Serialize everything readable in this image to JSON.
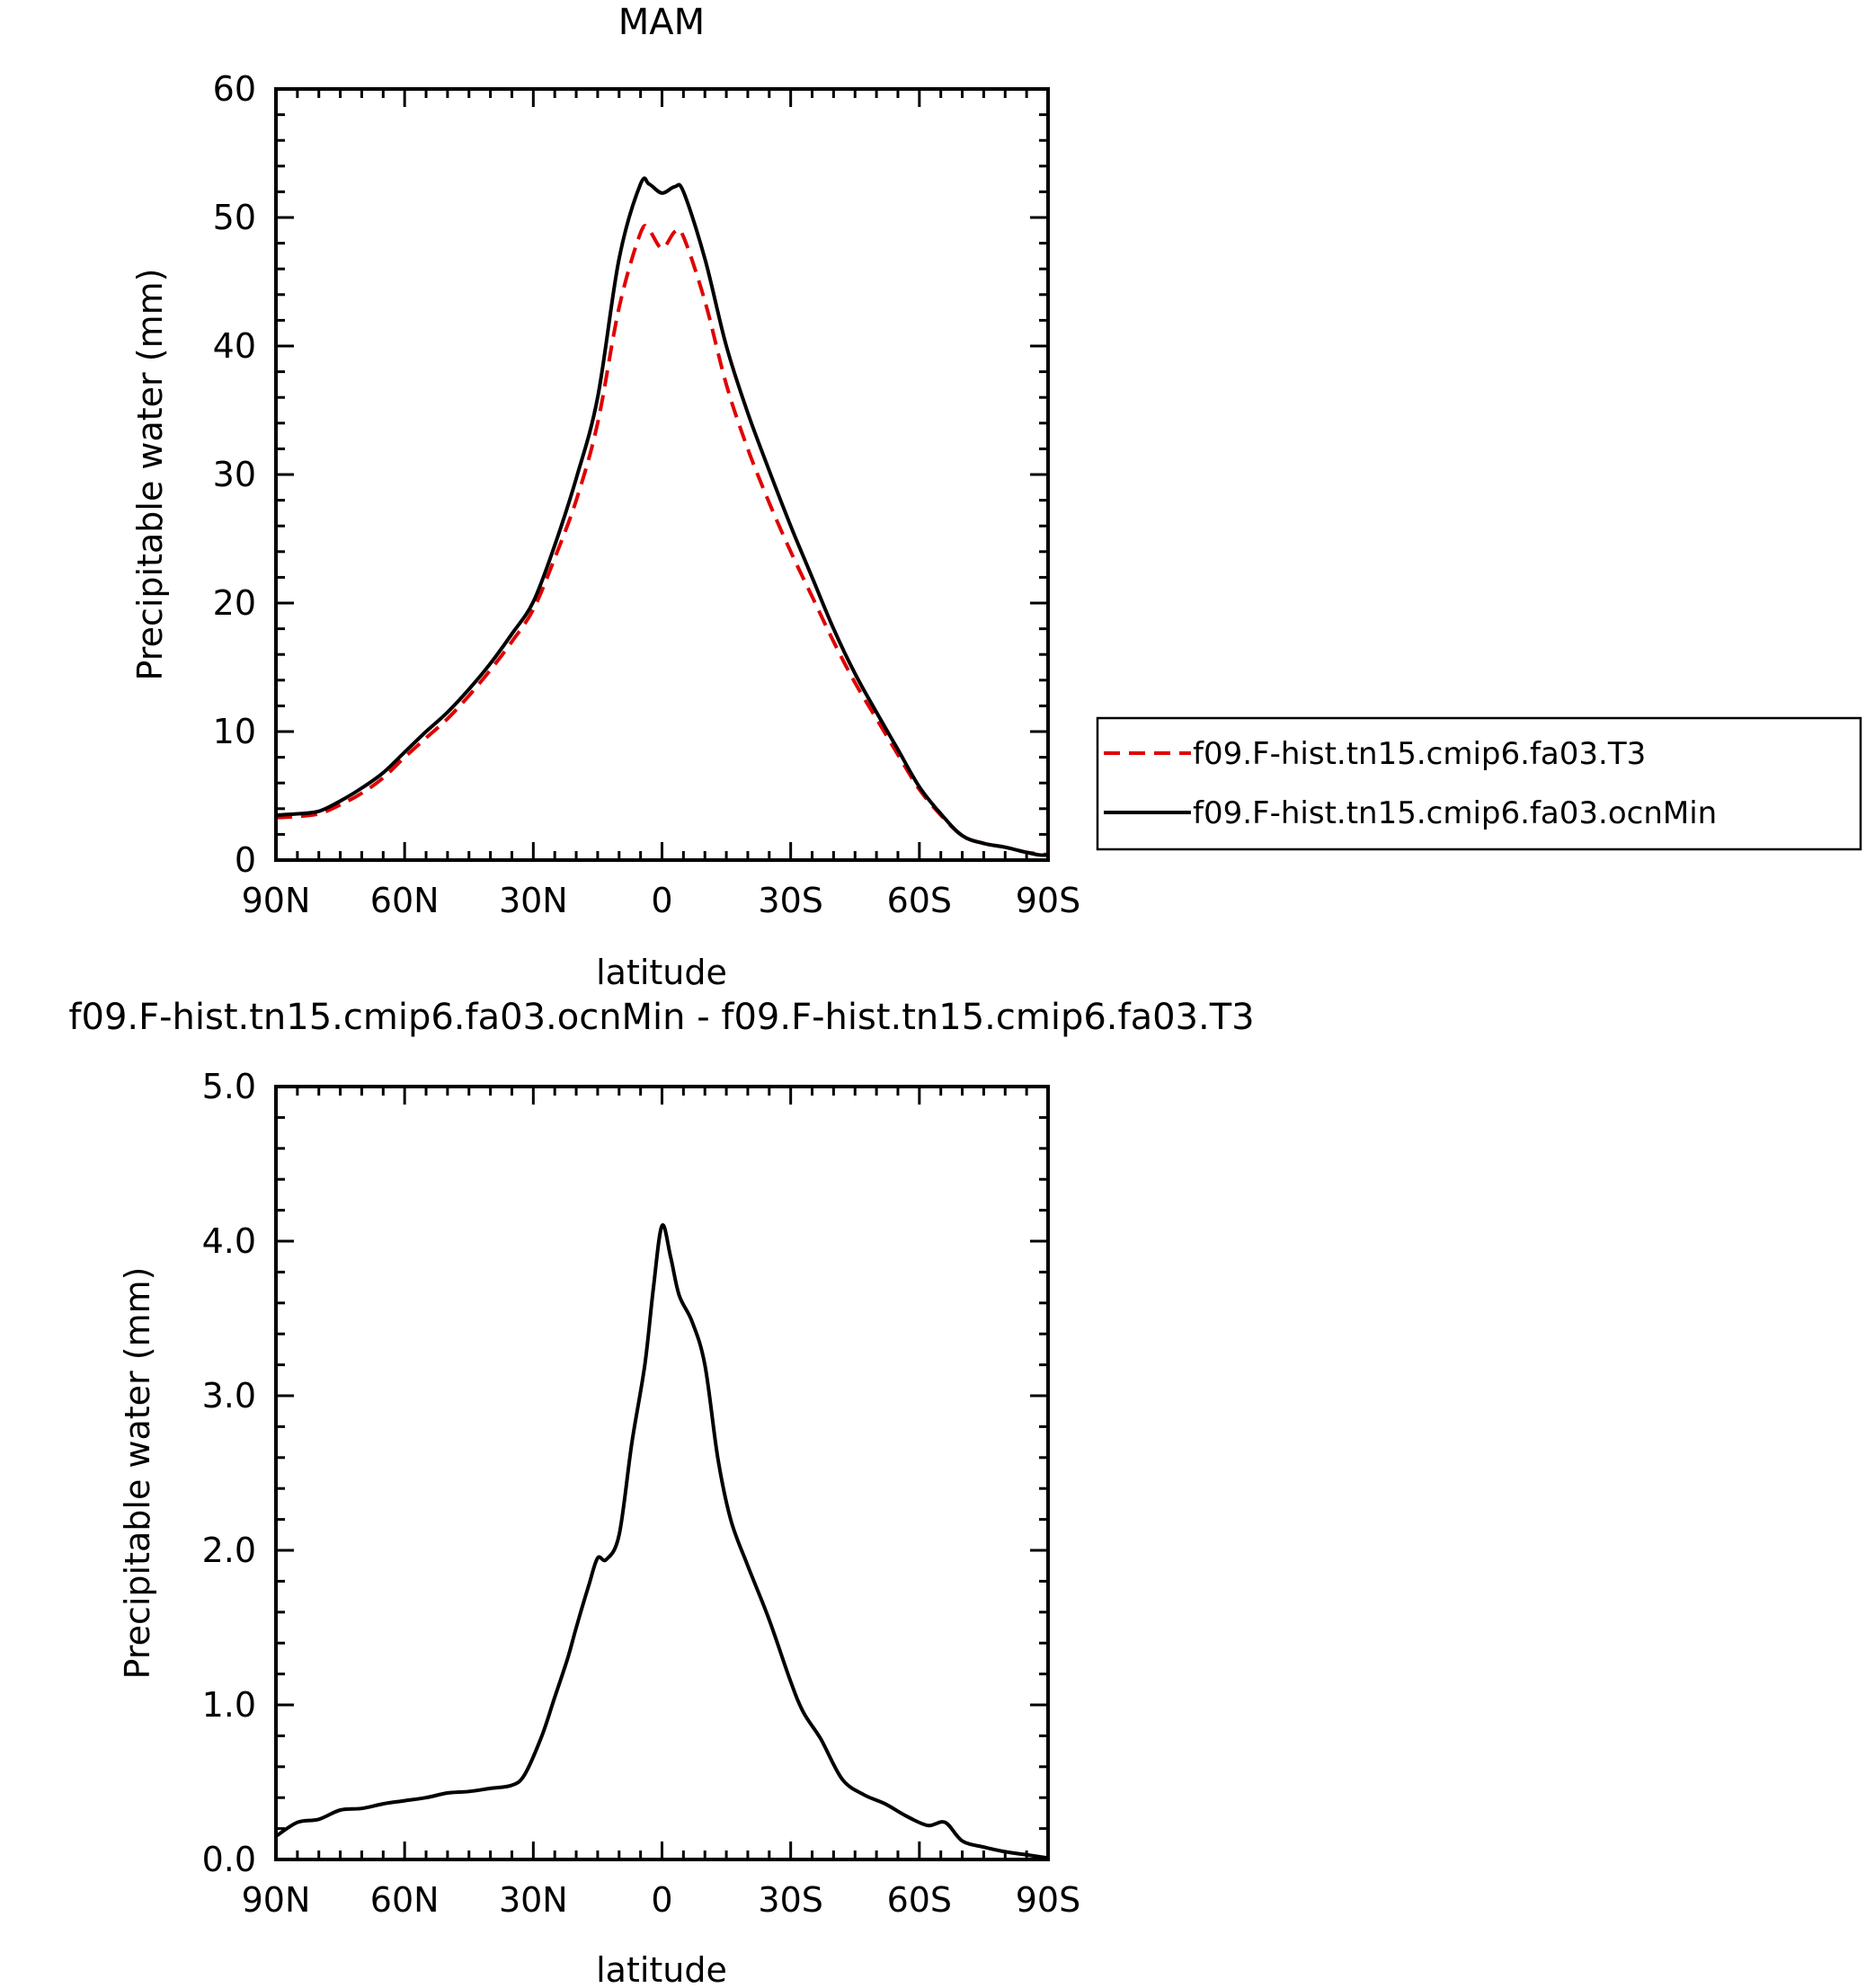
{
  "chart_data": [
    {
      "type": "line",
      "title": "MAM",
      "xlabel": "latitude",
      "ylabel": "Precipitable water (mm)",
      "xlim": [
        90,
        -90
      ],
      "ylim": [
        0,
        60
      ],
      "x_tick_values": [
        90,
        60,
        30,
        0,
        -30,
        -60,
        -90
      ],
      "x_tick_labels": [
        "90N",
        "60N",
        "30N",
        "0",
        "30S",
        "60S",
        "90S"
      ],
      "y_tick_values": [
        0,
        10,
        20,
        30,
        40,
        50,
        60
      ],
      "y_tick_labels": [
        "0",
        "10",
        "20",
        "30",
        "40",
        "50",
        "60"
      ],
      "legend_position": "right",
      "x": [
        90,
        85,
        80,
        75,
        70,
        65,
        60,
        55,
        50,
        45,
        40,
        35,
        30,
        25,
        20,
        15,
        10,
        5,
        3,
        0,
        -3,
        -5,
        -10,
        -15,
        -20,
        -25,
        -30,
        -35,
        -40,
        -45,
        -50,
        -55,
        -60,
        -65,
        -70,
        -75,
        -80,
        -85,
        -88,
        -90
      ],
      "series": [
        {
          "name": "f09.F-hist.tn15.cmip6.fa03.T3",
          "color": "#e00000",
          "dash": "dashed",
          "values": [
            3.3,
            3.4,
            3.6,
            4.3,
            5.2,
            6.4,
            8.0,
            9.5,
            11.0,
            12.8,
            14.8,
            17.0,
            19.5,
            23.5,
            28.0,
            34.0,
            43.0,
            48.8,
            49.0,
            47.6,
            48.9,
            48.5,
            43.5,
            37.0,
            32.0,
            27.8,
            24.0,
            20.5,
            17.0,
            13.8,
            11.0,
            8.2,
            5.5,
            3.5,
            1.9,
            1.3,
            1.0,
            0.6,
            0.5,
            0.4
          ]
        },
        {
          "name": "f09.F-hist.tn15.cmip6.fa03.ocnMin",
          "color": "#000000",
          "dash": "solid",
          "values": [
            3.5,
            3.6,
            3.8,
            4.6,
            5.6,
            6.8,
            8.4,
            10.0,
            11.5,
            13.3,
            15.3,
            17.6,
            20.1,
            24.5,
            29.7,
            36.0,
            46.8,
            52.6,
            52.6,
            51.9,
            52.4,
            52.0,
            46.8,
            40.0,
            34.8,
            30.3,
            26.0,
            22.0,
            18.0,
            14.5,
            11.5,
            8.6,
            5.7,
            3.6,
            1.9,
            1.3,
            1.0,
            0.6,
            0.4,
            0.4
          ]
        }
      ]
    },
    {
      "type": "line",
      "title": "f09.F-hist.tn15.cmip6.fa03.ocnMin - f09.F-hist.tn15.cmip6.fa03.T3",
      "xlabel": "latitude",
      "ylabel": "Precipitable water (mm)",
      "xlim": [
        90,
        -90
      ],
      "ylim": [
        0,
        5
      ],
      "x_tick_values": [
        90,
        60,
        30,
        0,
        -30,
        -60,
        -90
      ],
      "x_tick_labels": [
        "90N",
        "60N",
        "30N",
        "0",
        "30S",
        "60S",
        "90S"
      ],
      "y_tick_values": [
        0,
        1,
        2,
        3,
        4,
        5
      ],
      "y_tick_labels": [
        "0.0",
        "1.0",
        "2.0",
        "3.0",
        "4.0",
        "5.0"
      ],
      "x": [
        90,
        85,
        80,
        75,
        70,
        65,
        60,
        55,
        50,
        45,
        40,
        35,
        32,
        28,
        25,
        22,
        20,
        17,
        15,
        13,
        10,
        7,
        4,
        2,
        0,
        -2,
        -4,
        -7,
        -10,
        -13,
        -16,
        -20,
        -25,
        -30,
        -33,
        -37,
        -42,
        -47,
        -52,
        -57,
        -62,
        -66,
        -70,
        -75,
        -80,
        -85,
        -90
      ],
      "series": [
        {
          "name": "",
          "color": "#000000",
          "dash": "solid",
          "values": [
            0.15,
            0.24,
            0.26,
            0.32,
            0.33,
            0.36,
            0.38,
            0.4,
            0.43,
            0.44,
            0.46,
            0.48,
            0.55,
            0.8,
            1.05,
            1.3,
            1.5,
            1.78,
            1.95,
            1.94,
            2.1,
            2.7,
            3.2,
            3.7,
            4.1,
            3.9,
            3.65,
            3.48,
            3.2,
            2.6,
            2.2,
            1.9,
            1.55,
            1.15,
            0.95,
            0.78,
            0.52,
            0.42,
            0.36,
            0.28,
            0.22,
            0.24,
            0.12,
            0.08,
            0.05,
            0.03,
            0.01
          ]
        }
      ]
    }
  ]
}
